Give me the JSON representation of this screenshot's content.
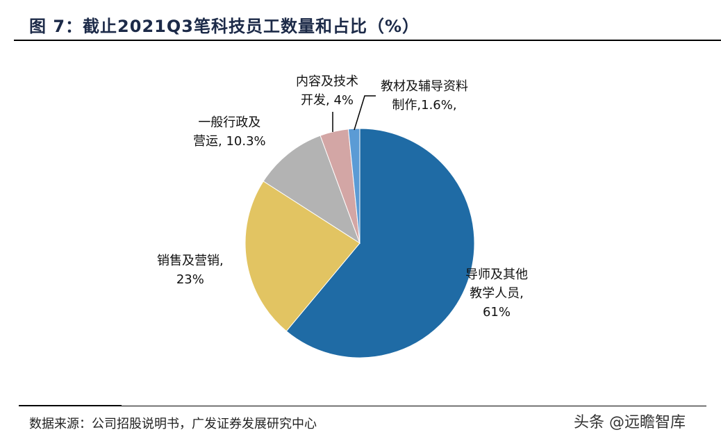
{
  "title": "图 7：截止2021Q3笔科技员工数量和占比（%）",
  "source": "数据来源：公司招股说明书，广发证券发展研究中心",
  "watermark": "头条 @远瞻智库",
  "chart_data": {
    "type": "pie",
    "title": "图 7：截止2021Q3笔科技员工数量和占比（%）",
    "start": "12 o'clock, clockwise",
    "slices": [
      {
        "name": "导师及其他教学人员",
        "value": 61,
        "label_lines": [
          "导师及其他",
          "教学人员,",
          "61%"
        ],
        "color": "#1f6ba5"
      },
      {
        "name": "销售及营销",
        "value": 23,
        "label_lines": [
          "销售及营销,",
          "23%"
        ],
        "color": "#e2c462"
      },
      {
        "name": "一般行政及营运",
        "value": 10.3,
        "label_lines": [
          "一般行政及",
          "营运, 10.3%"
        ],
        "color": "#b3b3b3"
      },
      {
        "name": "内容及技术开发",
        "value": 4,
        "label_lines": [
          "内容及技术",
          "开发, 4%"
        ],
        "color": "#d3a6a5"
      },
      {
        "name": "教材及辅导资料制作",
        "value": 1.6,
        "label_lines": [
          "教材及辅导资料",
          "制作,1.6%,"
        ],
        "color": "#5b9bd5"
      }
    ]
  }
}
